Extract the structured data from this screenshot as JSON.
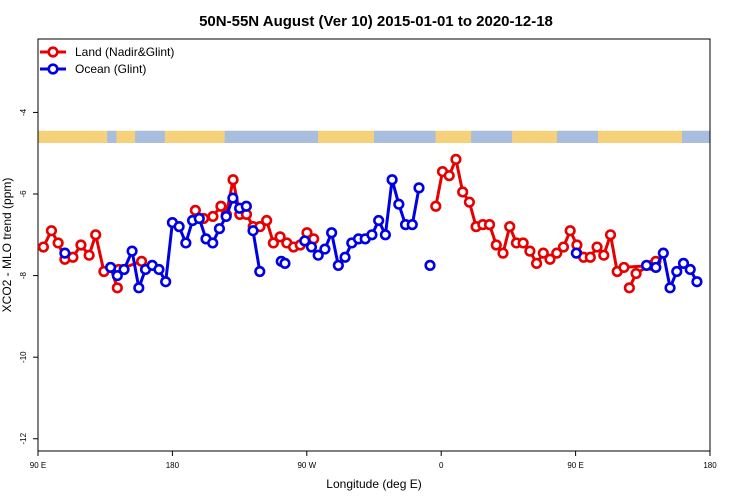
{
  "chart_data": {
    "type": "line",
    "title": "50N-55N August (Ver 10)   2015-01-01 to 2020-12-18",
    "xlabel": "Longitude (deg E)",
    "ylabel": "XCO2 - MLO trend (ppm)",
    "xlim": [
      0,
      360
    ],
    "ylim": [
      -12.3,
      -2.2
    ],
    "x_ticks": [
      {
        "value": 0,
        "label": "90 E"
      },
      {
        "value": 72,
        "label": "180"
      },
      {
        "value": 144,
        "label": "90 W"
      },
      {
        "value": 216,
        "label": "0"
      },
      {
        "value": 288,
        "label": "90 E"
      },
      {
        "value": 360,
        "label": "180"
      }
    ],
    "y_ticks": [
      {
        "value": -4,
        "label": "-4"
      },
      {
        "value": -6,
        "label": "-6"
      },
      {
        "value": -8,
        "label": "-8"
      },
      {
        "value": -10,
        "label": "-10"
      },
      {
        "value": -12,
        "label": "-12"
      }
    ],
    "legend_position": "top-left",
    "land_ocean_strip": {
      "y_range": [
        -4.75,
        -4.45
      ],
      "land_color": "#f5d27a",
      "ocean_color": "#a9bedf"
    },
    "series": [
      {
        "name": "Land (Nadir&Glint)",
        "color": "#e60000",
        "segments": [
          [
            [
              2.9,
              -7.3
            ],
            [
              7.2,
              -6.9
            ],
            [
              10.8,
              -7.2
            ],
            [
              14.4,
              -7.6
            ],
            [
              18.7,
              -7.55
            ],
            [
              23,
              -7.25
            ],
            [
              27.4,
              -7.5
            ],
            [
              30.9,
              -7.0
            ],
            [
              35.3,
              -7.9
            ],
            [
              38.9,
              -7.8
            ],
            [
              42.5,
              -8.3
            ]
          ],
          [
            [
              43.3,
              -7.85
            ],
            [
              55.5,
              -7.65
            ]
          ],
          [
            [
              84.3,
              -6.4
            ],
            [
              88.7,
              -6.6
            ],
            [
              93.7,
              -6.55
            ],
            [
              98,
              -6.3
            ],
            [
              100.9,
              -6.5
            ],
            [
              104.5,
              -5.65
            ],
            [
              108.1,
              -6.5
            ],
            [
              111.7,
              -6.5
            ],
            [
              115.3,
              -6.8
            ],
            [
              118.9,
              -6.8
            ],
            [
              122.5,
              -6.65
            ],
            [
              126.1,
              -7.2
            ],
            [
              129.7,
              -7.05
            ],
            [
              133.3,
              -7.2
            ],
            [
              136.9,
              -7.3
            ],
            [
              140.5,
              -7.25
            ],
            [
              144.1,
              -6.95
            ],
            [
              147.7,
              -7.1
            ]
          ],
          [
            [
              213.1,
              -6.3
            ],
            [
              216.7,
              -5.45
            ],
            [
              220.3,
              -5.55
            ],
            [
              223.9,
              -5.15
            ],
            [
              227.5,
              -5.95
            ],
            [
              231.1,
              -6.2
            ],
            [
              234.7,
              -6.8
            ],
            [
              238.3,
              -6.75
            ],
            [
              241.9,
              -6.75
            ],
            [
              245.5,
              -7.25
            ],
            [
              249.1,
              -7.45
            ],
            [
              252.7,
              -6.8
            ],
            [
              256.3,
              -7.2
            ],
            [
              259.9,
              -7.2
            ],
            [
              263.5,
              -7.4
            ],
            [
              267.1,
              -7.7
            ],
            [
              270.7,
              -7.45
            ],
            [
              274.3,
              -7.6
            ],
            [
              277.9,
              -7.45
            ],
            [
              281.5,
              -7.3
            ],
            [
              285.1,
              -6.9
            ],
            [
              288.7,
              -7.25
            ],
            [
              292.3,
              -7.55
            ],
            [
              295.9,
              -7.55
            ],
            [
              299.5,
              -7.3
            ],
            [
              303.1,
              -7.5
            ],
            [
              306.7,
              -7.0
            ],
            [
              310.3,
              -7.9
            ],
            [
              313.9,
              -7.8
            ],
            [
              328.9,
              -7.75
            ]
          ],
          [
            [
              316.8,
              -8.3
            ],
            [
              320.4,
              -7.95
            ],
            [
              331,
              -7.65
            ]
          ]
        ]
      },
      {
        "name": "Ocean (Glint)",
        "color": "#0000e6",
        "segments": [
          [
            [
              14.4,
              -7.45
            ]
          ],
          [
            [
              38.9,
              -7.8
            ],
            [
              42.5,
              -8.0
            ],
            [
              46.1,
              -7.85
            ],
            [
              50.4,
              -7.4
            ],
            [
              54,
              -8.3
            ],
            [
              57.6,
              -7.85
            ],
            [
              61.2,
              -7.75
            ],
            [
              64.8,
              -7.85
            ],
            [
              68.4,
              -8.15
            ],
            [
              72,
              -6.7
            ],
            [
              75.6,
              -6.8
            ],
            [
              79.2,
              -7.2
            ],
            [
              82.8,
              -6.65
            ],
            [
              86.4,
              -6.6
            ],
            [
              90,
              -7.1
            ],
            [
              93.6,
              -7.2
            ],
            [
              97.2,
              -6.85
            ],
            [
              100.8,
              -6.55
            ],
            [
              104.4,
              -6.1
            ],
            [
              108,
              -6.35
            ],
            [
              111.6,
              -6.3
            ]
          ],
          [
            [
              115.2,
              -6.9
            ],
            [
              118.8,
              -7.9
            ]
          ],
          [
            [
              130.3,
              -7.65
            ],
            [
              132.3,
              -7.7
            ]
          ],
          [
            [
              142.9,
              -7.15
            ],
            [
              146.5,
              -7.3
            ],
            [
              150.1,
              -7.5
            ],
            [
              153.7,
              -7.35
            ],
            [
              157.3,
              -6.95
            ],
            [
              160.9,
              -7.75
            ],
            [
              164.5,
              -7.55
            ],
            [
              168.1,
              -7.2
            ],
            [
              171.7,
              -7.1
            ],
            [
              175.3,
              -7.1
            ],
            [
              178.9,
              -7.0
            ],
            [
              182.5,
              -6.65
            ],
            [
              186.1,
              -7.0
            ],
            [
              189.7,
              -5.65
            ],
            [
              193.3,
              -6.25
            ],
            [
              196.9,
              -6.75
            ],
            [
              200.5,
              -6.75
            ],
            [
              204.1,
              -5.85
            ]
          ],
          [
            [
              210,
              -7.75
            ]
          ],
          [
            [
              288.4,
              -7.45
            ]
          ],
          [
            [
              326,
              -7.75
            ],
            [
              331,
              -7.8
            ],
            [
              335,
              -7.45
            ],
            [
              338.6,
              -8.3
            ],
            [
              342.2,
              -7.9
            ],
            [
              345.8,
              -7.7
            ],
            [
              349.4,
              -7.85
            ],
            [
              353,
              -8.15
            ]
          ]
        ]
      }
    ]
  }
}
